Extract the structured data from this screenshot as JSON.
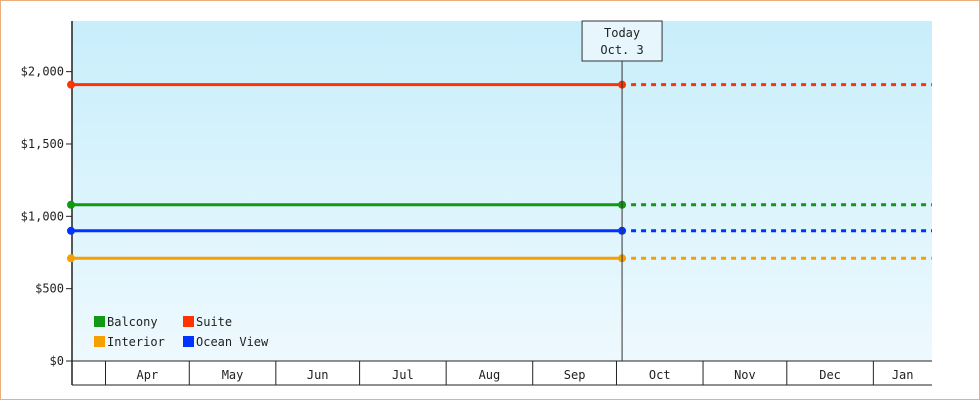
{
  "chart_data": {
    "type": "line",
    "title": "",
    "xlabel": "",
    "ylabel": "",
    "ylim": [
      0,
      2350
    ],
    "y_ticks": [
      {
        "value": 0,
        "label": "$0"
      },
      {
        "value": 500,
        "label": "$500"
      },
      {
        "value": 1000,
        "label": "$1,000"
      },
      {
        "value": 1500,
        "label": "$1,500"
      },
      {
        "value": 2000,
        "label": "$2,000"
      }
    ],
    "categories": [
      "Apr",
      "May",
      "Jun",
      "Jul",
      "Aug",
      "Sep",
      "Oct",
      "Nov",
      "Dec",
      "Jan"
    ],
    "today": {
      "line1": "Today",
      "line2": "Oct. 3"
    },
    "grid": false,
    "legend_position": "bottom-left",
    "background_gradient": [
      "#c8eefb",
      "#eef9fe"
    ],
    "series": [
      {
        "name": "Suite",
        "color": "#ff3300",
        "value": 1910,
        "start": "Apr",
        "end_actual": "Oct. 3",
        "projection": "dotted"
      },
      {
        "name": "Balcony",
        "color": "#119911",
        "value": 1080,
        "start": "Apr",
        "end_actual": "Oct. 3",
        "projection": "dotted"
      },
      {
        "name": "Ocean View",
        "color": "#0033ff",
        "value": 900,
        "start": "Apr",
        "end_actual": "Oct. 3",
        "projection": "dotted"
      },
      {
        "name": "Interior",
        "color": "#f5a000",
        "value": 710,
        "start": "Apr",
        "end_actual": "Oct. 3",
        "projection": "dotted"
      }
    ],
    "legend": [
      {
        "name": "Balcony",
        "color": "#119911"
      },
      {
        "name": "Suite",
        "color": "#ff3300"
      },
      {
        "name": "Interior",
        "color": "#f5a000"
      },
      {
        "name": "Ocean View",
        "color": "#0033ff"
      }
    ]
  }
}
